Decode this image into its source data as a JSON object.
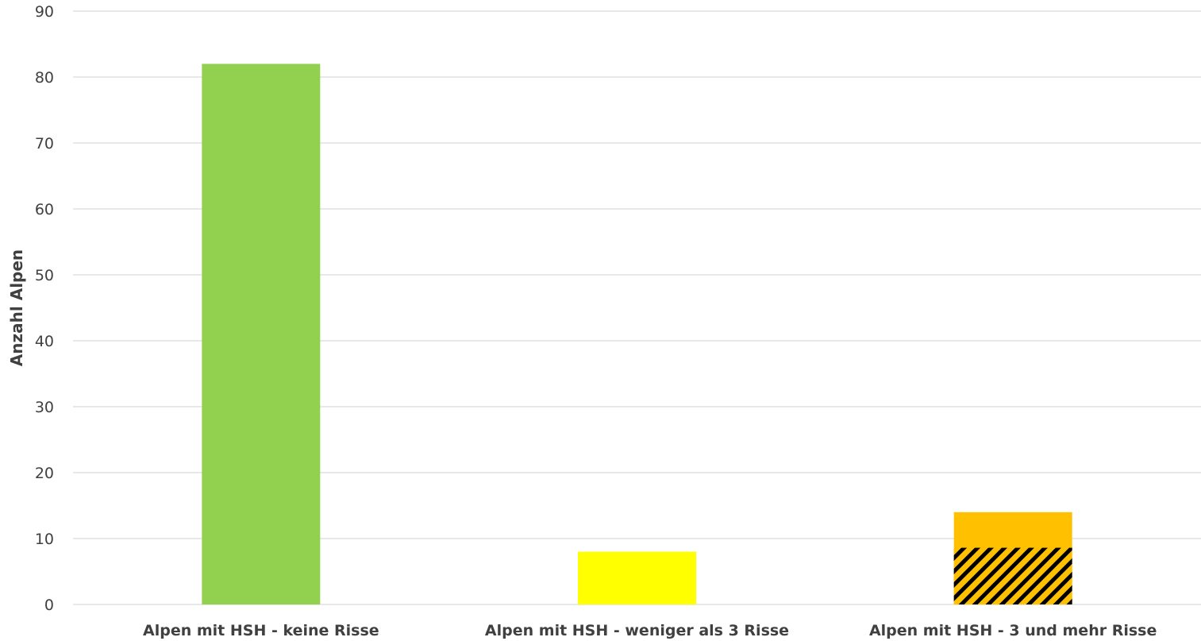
{
  "chart_data": {
    "type": "bar",
    "title": "",
    "xlabel": "",
    "ylabel": "Anzahl Alpen",
    "ylim": [
      0,
      90
    ],
    "yticks": [
      0,
      10,
      20,
      30,
      40,
      50,
      60,
      70,
      80,
      90
    ],
    "grid": true,
    "categories": [
      "Alpen mit HSH - keine Risse",
      "Alpen mit HSH - weniger als 3 Risse",
      "Alpen mit HSH - 3 und mehr Risse"
    ],
    "values": [
      82,
      8,
      14
    ],
    "colors": [
      "#92d050",
      "#ffff00",
      "#ffc000"
    ],
    "hatched_segment": {
      "category_index": 2,
      "value": 8.6,
      "pattern": "diagonal-stripes",
      "stripe_color": "#000000",
      "base_color": "#ffc000"
    }
  }
}
